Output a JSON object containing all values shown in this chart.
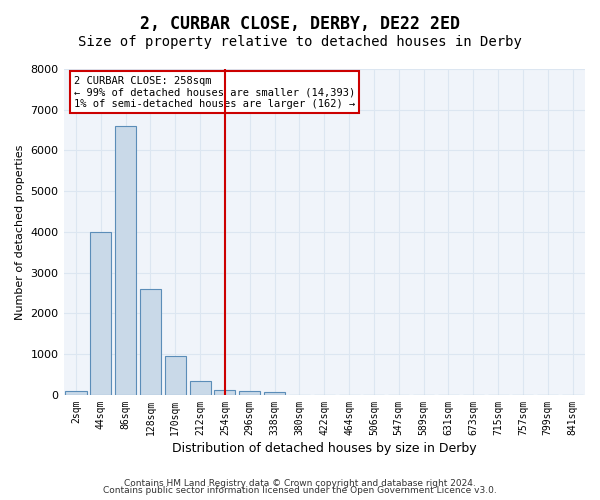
{
  "title": "2, CURBAR CLOSE, DERBY, DE22 2ED",
  "subtitle": "Size of property relative to detached houses in Derby",
  "xlabel": "Distribution of detached houses by size in Derby",
  "ylabel": "Number of detached properties",
  "bin_labels": [
    "2sqm",
    "44sqm",
    "86sqm",
    "128sqm",
    "170sqm",
    "212sqm",
    "254sqm",
    "296sqm",
    "338sqm",
    "380sqm",
    "422sqm",
    "464sqm",
    "506sqm",
    "547sqm",
    "589sqm",
    "631sqm",
    "673sqm",
    "715sqm",
    "757sqm",
    "799sqm",
    "841sqm"
  ],
  "bar_heights": [
    100,
    4000,
    6600,
    2600,
    950,
    330,
    130,
    100,
    80,
    0,
    0,
    0,
    0,
    0,
    0,
    0,
    0,
    0,
    0,
    0,
    0
  ],
  "bar_color": "#c9d9e8",
  "bar_edge_color": "#5b8db8",
  "vline_color": "#cc0000",
  "vline_x": 6,
  "annotation_text": "2 CURBAR CLOSE: 258sqm\n← 99% of detached houses are smaller (14,393)\n1% of semi-detached houses are larger (162) →",
  "annotation_box_color": "#cc0000",
  "ylim": [
    0,
    8000
  ],
  "yticks": [
    0,
    1000,
    2000,
    3000,
    4000,
    5000,
    6000,
    7000,
    8000
  ],
  "grid_color": "#dce6f1",
  "footer_line1": "Contains HM Land Registry data © Crown copyright and database right 2024.",
  "footer_line2": "Contains public sector information licensed under the Open Government Licence v3.0.",
  "background_color": "#f0f4fa",
  "title_fontsize": 12,
  "subtitle_fontsize": 10
}
